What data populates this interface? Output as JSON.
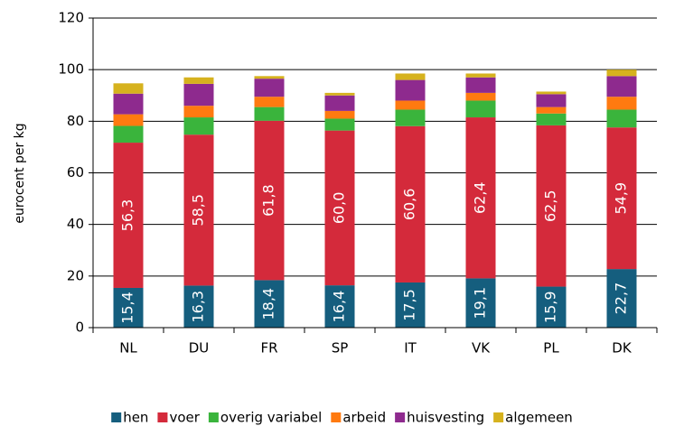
{
  "chart_data": {
    "type": "stacked_bar",
    "ylabel": "eurocent per kg",
    "categories": [
      "NL",
      "DU",
      "FR",
      "SP",
      "IT",
      "VK",
      "PL",
      "DK"
    ],
    "series": [
      {
        "name": "hen",
        "color": "#155e7e",
        "values": [
          15.4,
          16.3,
          18.4,
          16.4,
          17.5,
          19.1,
          15.9,
          22.7
        ],
        "value_labels": [
          "15,4",
          "16,3",
          "18,4",
          "16,4",
          "17,5",
          "19,1",
          "15,9",
          "22,7"
        ]
      },
      {
        "name": "voer",
        "color": "#d42a3b",
        "values": [
          56.3,
          58.5,
          61.8,
          60.0,
          60.6,
          62.4,
          62.5,
          54.9
        ],
        "value_labels": [
          "56,3",
          "58,5",
          "61,8",
          "60,0",
          "60,6",
          "62,4",
          "62,5",
          "54,9"
        ]
      },
      {
        "name": "overig variabel",
        "color": "#3ab43c",
        "values": [
          6.5,
          6.7,
          5.3,
          4.6,
          6.4,
          6.5,
          4.6,
          6.9
        ]
      },
      {
        "name": "arbeid",
        "color": "#ff7a10",
        "values": [
          4.5,
          4.5,
          4.0,
          3.0,
          3.5,
          3.0,
          2.5,
          5.0
        ]
      },
      {
        "name": "huisvesting",
        "color": "#8e2a8e",
        "values": [
          8.0,
          8.5,
          7.0,
          6.0,
          8.0,
          6.0,
          5.0,
          8.0
        ]
      },
      {
        "name": "algemeen",
        "color": "#d6b21e",
        "values": [
          4.0,
          2.5,
          1.0,
          1.0,
          2.5,
          1.5,
          1.0,
          2.5
        ]
      }
    ],
    "ylim": [
      0,
      120
    ],
    "yticks": [
      0,
      20,
      40,
      60,
      80,
      100,
      120
    ],
    "grid": true,
    "legend": "bottom"
  }
}
